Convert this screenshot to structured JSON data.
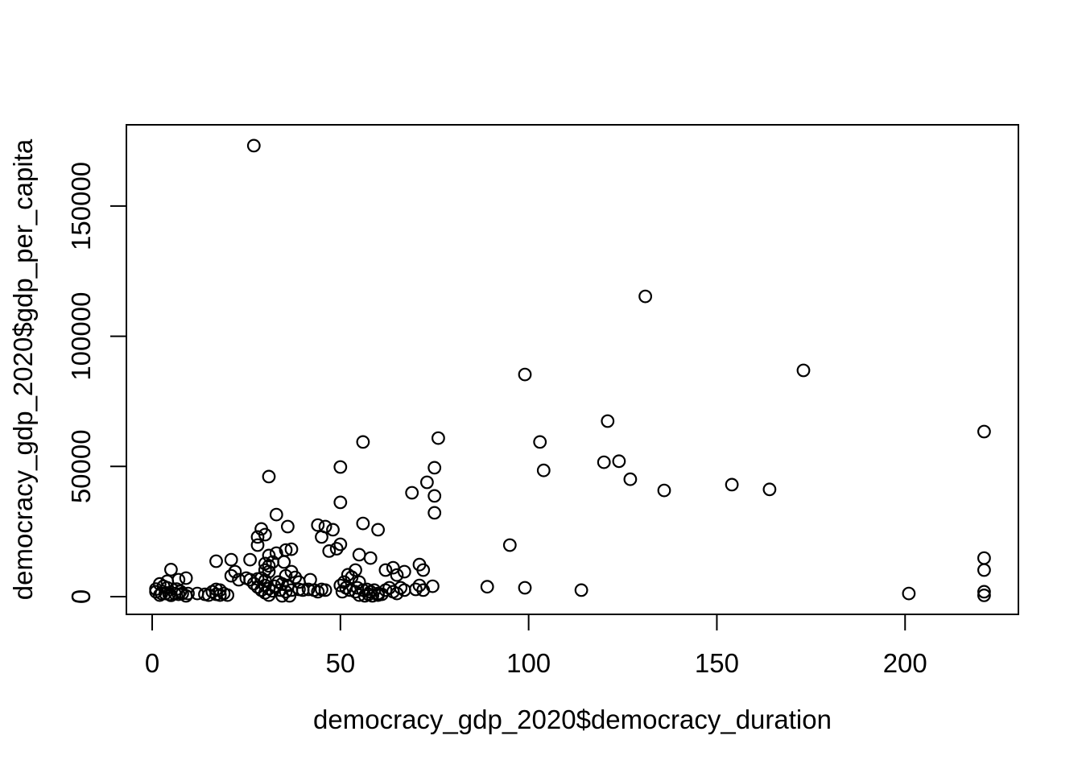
{
  "figure": {
    "background": "#ffffff",
    "foreground": "#000000"
  },
  "chart_data": {
    "type": "scatter",
    "title": "",
    "xlabel": "democracy_gdp_2020$democracy_duration",
    "ylabel": "democracy_gdp_2020$gdp_per_capita",
    "marker": "open-circle",
    "grid": false,
    "legend": null,
    "xlim": [
      -6.85,
      230.1
    ],
    "ylim": [
      -6800,
      181200
    ],
    "x_ticks": [
      0,
      50,
      100,
      150,
      200
    ],
    "x_tick_labels": [
      "0",
      "50",
      "100",
      "150",
      "200"
    ],
    "y_ticks": [
      0,
      50000,
      100000,
      150000
    ],
    "y_tick_labels": [
      "0",
      "50000",
      "100000",
      "150000"
    ],
    "points": [
      [
        27,
        173200
      ],
      [
        131,
        115300
      ],
      [
        173,
        86900
      ],
      [
        99,
        85300
      ],
      [
        121,
        67400
      ],
      [
        221,
        63400
      ],
      [
        76,
        60900
      ],
      [
        103,
        59400
      ],
      [
        56,
        59400
      ],
      [
        124,
        52000
      ],
      [
        120,
        51600
      ],
      [
        104,
        48500
      ],
      [
        50,
        49800
      ],
      [
        75,
        49500
      ],
      [
        31,
        46100
      ],
      [
        127,
        45100
      ],
      [
        73,
        43900
      ],
      [
        154,
        43000
      ],
      [
        164,
        41200
      ],
      [
        136,
        40800
      ],
      [
        69,
        39900
      ],
      [
        75,
        38700
      ],
      [
        50,
        36200
      ],
      [
        75,
        32200
      ],
      [
        33,
        31500
      ],
      [
        56,
        28100
      ],
      [
        44,
        27500
      ],
      [
        36,
        26900
      ],
      [
        46,
        26900
      ],
      [
        29,
        26000
      ],
      [
        48,
        25700
      ],
      [
        60,
        25700
      ],
      [
        30,
        23800
      ],
      [
        45,
        22900
      ],
      [
        28,
        22900
      ],
      [
        50,
        20100
      ],
      [
        95,
        19800
      ],
      [
        28,
        19800
      ],
      [
        49,
        18400
      ],
      [
        37,
        18200
      ],
      [
        35.5,
        17900
      ],
      [
        47,
        17500
      ],
      [
        33,
        16700
      ],
      [
        55,
        16100
      ],
      [
        31,
        15800
      ],
      [
        58,
        14800
      ],
      [
        221,
        14800
      ],
      [
        26,
        14200
      ],
      [
        21,
        14200
      ],
      [
        17,
        13600
      ],
      [
        32,
        13300
      ],
      [
        35,
        13300
      ],
      [
        30,
        12700
      ],
      [
        71,
        12300
      ],
      [
        31,
        11800
      ],
      [
        64,
        11100
      ],
      [
        5,
        10400
      ],
      [
        30,
        10200
      ],
      [
        54,
        10200
      ],
      [
        62,
        10200
      ],
      [
        72,
        10200
      ],
      [
        221,
        10200
      ],
      [
        31,
        9600
      ],
      [
        37,
        9600
      ],
      [
        22,
        9600
      ],
      [
        67,
        9600
      ],
      [
        52,
        8400
      ],
      [
        65,
        8300
      ],
      [
        21,
        8000
      ],
      [
        35.5,
        8000
      ],
      [
        53,
        7500
      ],
      [
        38,
        7400
      ],
      [
        9,
        7100
      ],
      [
        25,
        7100
      ],
      [
        29,
        7100
      ],
      [
        28,
        6800
      ],
      [
        7,
        6500
      ],
      [
        23,
        6500
      ],
      [
        26,
        6500
      ],
      [
        42,
        6500
      ],
      [
        30,
        6200
      ],
      [
        4,
        5900
      ],
      [
        33.5,
        5600
      ],
      [
        39,
        5600
      ],
      [
        51,
        5600
      ],
      [
        55,
        5600
      ],
      [
        27,
        5000
      ],
      [
        2,
        4900
      ],
      [
        34.5,
        4900
      ],
      [
        50,
        4300
      ],
      [
        36,
        4300
      ],
      [
        71,
        4300
      ],
      [
        30,
        4300
      ],
      [
        3,
        4000
      ],
      [
        32.5,
        4000
      ],
      [
        74.5,
        4000
      ],
      [
        89,
        3800
      ],
      [
        28,
        3700
      ],
      [
        4,
        3400
      ],
      [
        51.5,
        3400
      ],
      [
        54.5,
        3400
      ],
      [
        63,
        3400
      ],
      [
        66,
        3400
      ],
      [
        99,
        3400
      ],
      [
        31,
        3100
      ],
      [
        1,
        2900
      ],
      [
        6.5,
        2900
      ],
      [
        17,
        2800
      ],
      [
        39,
        2800
      ],
      [
        41.5,
        2800
      ],
      [
        45,
        2800
      ],
      [
        57,
        2800
      ],
      [
        70,
        2800
      ],
      [
        29,
        2500
      ],
      [
        34,
        2500
      ],
      [
        37,
        2500
      ],
      [
        40,
        2500
      ],
      [
        43,
        2500
      ],
      [
        46,
        2500
      ],
      [
        52.5,
        2500
      ],
      [
        56,
        2500
      ],
      [
        59,
        2500
      ],
      [
        62,
        2500
      ],
      [
        67,
        2500
      ],
      [
        114,
        2500
      ],
      [
        18,
        2500
      ],
      [
        72,
        2500
      ],
      [
        32,
        2200
      ],
      [
        7.5,
        2000
      ],
      [
        16,
        1900
      ],
      [
        35.5,
        1900
      ],
      [
        44,
        1900
      ],
      [
        50.5,
        1900
      ],
      [
        54,
        1900
      ],
      [
        58,
        1900
      ],
      [
        64,
        1900
      ],
      [
        1,
        1900
      ],
      [
        221,
        1900
      ],
      [
        30,
        1500
      ],
      [
        2.5,
        1200
      ],
      [
        3.5,
        1200
      ],
      [
        6,
        1200
      ],
      [
        8,
        1200
      ],
      [
        9.5,
        1200
      ],
      [
        12,
        1200
      ],
      [
        19,
        1200
      ],
      [
        60,
        1200
      ],
      [
        65,
        1200
      ],
      [
        201,
        1200
      ],
      [
        4.5,
        900
      ],
      [
        7,
        900
      ],
      [
        14,
        900
      ],
      [
        17,
        900
      ],
      [
        57.5,
        900
      ],
      [
        61,
        900
      ],
      [
        2,
        600
      ],
      [
        15,
        600
      ],
      [
        18,
        600
      ],
      [
        20,
        600
      ],
      [
        31,
        600
      ],
      [
        55,
        600
      ],
      [
        60,
        600
      ],
      [
        5,
        500
      ],
      [
        221,
        500
      ],
      [
        9,
        300
      ],
      [
        34.5,
        300
      ],
      [
        36.5,
        300
      ],
      [
        56.5,
        300
      ],
      [
        58.5,
        300
      ]
    ]
  }
}
